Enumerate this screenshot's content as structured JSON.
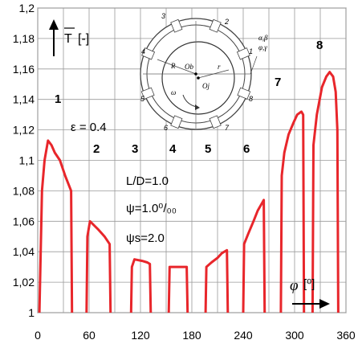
{
  "chart_data": {
    "type": "line",
    "title": "",
    "xlabel_symbol": "φ",
    "xlabel_unit": "[⁰]",
    "ylabel_symbol": "T",
    "ylabel_unit": "[-]",
    "xlim": [
      0,
      360
    ],
    "ylim": [
      1.0,
      1.2
    ],
    "x_ticks": [
      "0",
      "60",
      "120",
      "180",
      "240",
      "300",
      "360"
    ],
    "x_tick_values": [
      0,
      60,
      120,
      180,
      240,
      300,
      360
    ],
    "y_ticks": [
      "1",
      "1,02",
      "1,04",
      "1,06",
      "1,08",
      "1,1",
      "1,12",
      "1,14",
      "1,16",
      "1,18",
      "1,2"
    ],
    "y_tick_values": [
      1.0,
      1.02,
      1.04,
      1.06,
      1.08,
      1.1,
      1.12,
      1.14,
      1.16,
      1.18,
      1.2
    ],
    "grid": true,
    "line_color": "#e8262b",
    "segments": [
      {
        "name": "1",
        "points": [
          [
            2,
            1.0
          ],
          [
            5,
            1.08
          ],
          [
            8,
            1.1
          ],
          [
            12,
            1.113
          ],
          [
            16,
            1.11
          ],
          [
            20,
            1.105
          ],
          [
            26,
            1.1
          ],
          [
            32,
            1.09
          ],
          [
            39,
            1.08
          ],
          [
            40,
            1.0
          ]
        ]
      },
      {
        "name": "2",
        "points": [
          [
            57,
            1.0
          ],
          [
            58,
            1.05
          ],
          [
            61,
            1.06
          ],
          [
            70,
            1.055
          ],
          [
            78,
            1.05
          ],
          [
            84,
            1.045
          ],
          [
            85,
            1.0
          ]
        ]
      },
      {
        "name": "3",
        "points": [
          [
            109,
            1.0
          ],
          [
            110,
            1.03
          ],
          [
            113,
            1.035
          ],
          [
            122,
            1.034
          ],
          [
            128,
            1.033
          ],
          [
            131,
            1.032
          ],
          [
            132,
            1.0
          ]
        ]
      },
      {
        "name": "4",
        "points": [
          [
            153,
            1.0
          ],
          [
            154,
            1.03
          ],
          [
            160,
            1.03
          ],
          [
            168,
            1.03
          ],
          [
            174,
            1.03
          ],
          [
            175,
            1.0
          ]
        ]
      },
      {
        "name": "5",
        "points": [
          [
            196,
            1.0
          ],
          [
            197,
            1.03
          ],
          [
            203,
            1.033
          ],
          [
            210,
            1.036
          ],
          [
            215,
            1.039
          ],
          [
            221,
            1.041
          ],
          [
            222,
            1.0
          ]
        ]
      },
      {
        "name": "6",
        "points": [
          [
            240,
            1.0
          ],
          [
            241,
            1.045
          ],
          [
            246,
            1.052
          ],
          [
            252,
            1.06
          ],
          [
            257,
            1.067
          ],
          [
            262,
            1.072
          ],
          [
            264,
            1.074
          ],
          [
            265,
            1.0
          ]
        ]
      },
      {
        "name": "7",
        "points": [
          [
            284,
            1.0
          ],
          [
            285,
            1.09
          ],
          [
            288,
            1.105
          ],
          [
            293,
            1.117
          ],
          [
            299,
            1.125
          ],
          [
            303,
            1.13
          ],
          [
            308,
            1.132
          ],
          [
            310,
            1.13
          ],
          [
            311,
            1.0
          ]
        ]
      },
      {
        "name": "8",
        "points": [
          [
            321,
            1.0
          ],
          [
            322,
            1.11
          ],
          [
            326,
            1.13
          ],
          [
            332,
            1.148
          ],
          [
            337,
            1.155
          ],
          [
            341,
            1.158
          ],
          [
            345,
            1.155
          ],
          [
            348,
            1.145
          ],
          [
            350,
            1.12
          ],
          [
            351,
            1.0
          ]
        ]
      }
    ],
    "segment_labels": [
      "1",
      "2",
      "3",
      "4",
      "5",
      "6",
      "7",
      "8"
    ],
    "annotations": {
      "epsilon": "ε = 0.4",
      "ld": "L/D=1.0",
      "psi": "ψ=1.0⁰/₀₀",
      "psi_s": "ψs=2.0"
    },
    "inset_labels": {
      "segments": [
        "1",
        "2",
        "3",
        "4",
        "5",
        "6",
        "7",
        "8"
      ],
      "radius_R": "R",
      "center_b": "Ob",
      "center_j": "Oj",
      "radius_r": "r",
      "omega": "ω",
      "alpha_beta": "α,β",
      "phi_gamma": "φ,γ"
    }
  }
}
